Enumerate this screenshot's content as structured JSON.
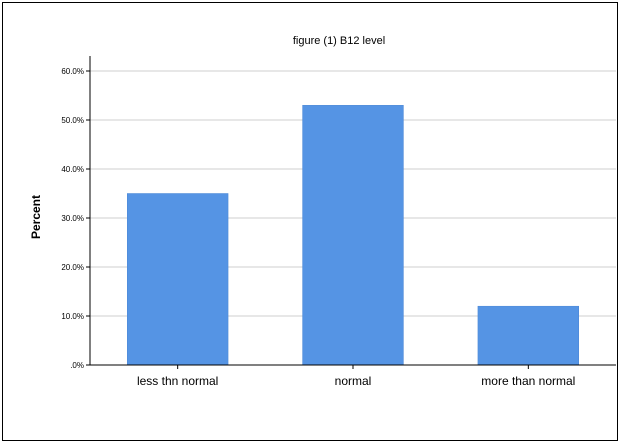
{
  "chart_data": {
    "type": "bar",
    "title": "figure (1) B12 level",
    "xlabel": "",
    "ylabel": "Percent",
    "categories": [
      "less thn normal",
      "normal",
      "more than normal"
    ],
    "values": [
      35.0,
      53.0,
      12.0
    ],
    "ylim": [
      0,
      60
    ],
    "yticks": [
      0,
      10,
      20,
      30,
      40,
      50,
      60
    ],
    "ytick_labels": [
      ".0%",
      "10.0%",
      "20.0%",
      "30.0%",
      "40.0%",
      "50.0%",
      "60.0%"
    ],
    "grid": true,
    "bar_color": "#5594E4",
    "grid_color": "#CFCFCF"
  }
}
